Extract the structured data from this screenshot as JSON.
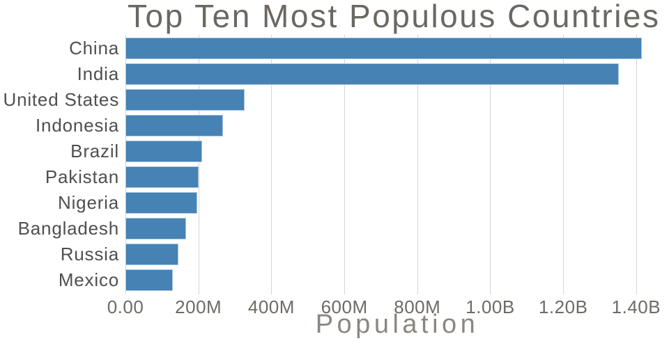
{
  "chart": {
    "title": "Top Ten Most Populous Countries",
    "xlabel": "Population"
  },
  "chart_data": {
    "type": "bar",
    "orientation": "horizontal",
    "title": "Top Ten Most Populous Countries",
    "xlabel": "Population",
    "ylabel": "",
    "categories": [
      "China",
      "India",
      "United States",
      "Indonesia",
      "Brazil",
      "Pakistan",
      "Nigeria",
      "Bangladesh",
      "Russia",
      "Mexico"
    ],
    "values": [
      1415000000,
      1353000000,
      327000000,
      267000000,
      211000000,
      201000000,
      196000000,
      166000000,
      145000000,
      130000000
    ],
    "values_unit": "people",
    "x_ticks": [
      {
        "value": 0,
        "label": "0.00"
      },
      {
        "value": 200000000,
        "label": "200M"
      },
      {
        "value": 400000000,
        "label": "400M"
      },
      {
        "value": 600000000,
        "label": "600M"
      },
      {
        "value": 800000000,
        "label": "800M"
      },
      {
        "value": 1000000000,
        "label": "1.00B"
      },
      {
        "value": 1200000000,
        "label": "1.20B"
      },
      {
        "value": 1400000000,
        "label": "1.40B"
      }
    ],
    "xlim": [
      0,
      1490000000
    ],
    "grid": "vertical-major-only",
    "legend": "none",
    "colors": {
      "bar_fill": "#4682b4",
      "bar_edge": "#a9c6e0",
      "gridline": "#d4d4d4",
      "title_text": "#6b6762",
      "axis_label_text": "#8b8680",
      "x_tick_text": "#6e6a66",
      "y_tick_text": "#4f4f4f",
      "background": "#ffffff"
    }
  }
}
